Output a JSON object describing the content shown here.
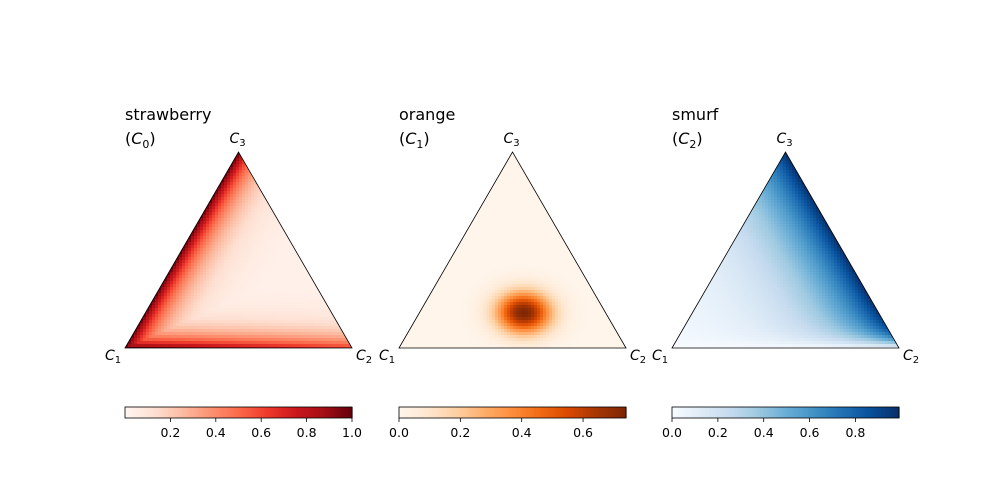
{
  "figure": {
    "background": "#ffffff"
  },
  "chart_data": [
    {
      "type": "heatmap",
      "subtype": "ternary-density",
      "title": "strawberry",
      "subtitle_symbol": "C",
      "subtitle_index": "0",
      "colormap": "Reds",
      "color_stops": [
        "#fff5f0",
        "#fee0d2",
        "#fcbba1",
        "#fc9272",
        "#fb6a4a",
        "#ef3b2c",
        "#cb181d",
        "#a50f15",
        "#67000d"
      ],
      "vertices": [
        {
          "symbol": "C",
          "index": "1"
        },
        {
          "symbol": "C",
          "index": "2"
        },
        {
          "symbol": "C",
          "index": "3"
        }
      ],
      "colorbar": {
        "range": [
          0.0,
          1.0
        ],
        "ticks": [
          0.2,
          0.4,
          0.6,
          0.8,
          1.0
        ],
        "tick_labels": [
          "0.2",
          "0.4",
          "0.6",
          "0.8",
          "1.0"
        ]
      },
      "pattern": "high along C1–C3 and C1–C2 edges, low in interior",
      "peak_barycentric": [
        1.0,
        0.0,
        0.0
      ]
    },
    {
      "type": "heatmap",
      "subtype": "ternary-density",
      "title": "orange",
      "subtitle_symbol": "C",
      "subtitle_index": "1",
      "colormap": "Oranges",
      "color_stops": [
        "#fff5eb",
        "#fee6ce",
        "#fdd0a2",
        "#fdae6b",
        "#fd8d3c",
        "#f16913",
        "#d94801",
        "#a63603",
        "#7f2704"
      ],
      "vertices": [
        {
          "symbol": "C",
          "index": "1"
        },
        {
          "symbol": "C",
          "index": "2"
        },
        {
          "symbol": "C",
          "index": "3"
        }
      ],
      "colorbar": {
        "range": [
          0.0,
          0.74
        ],
        "ticks": [
          0.0,
          0.2,
          0.4,
          0.6
        ],
        "tick_labels": [
          "0.0",
          "0.2",
          "0.4",
          "0.6"
        ]
      },
      "pattern": "single blob centred in lower interior",
      "peak_barycentric": [
        0.35,
        0.45,
        0.2
      ]
    },
    {
      "type": "heatmap",
      "subtype": "ternary-density",
      "title": "smurf",
      "subtitle_symbol": "C",
      "subtitle_index": "2",
      "colormap": "Blues",
      "color_stops": [
        "#f7fbff",
        "#deebf7",
        "#c6dbef",
        "#9ecae1",
        "#6baed6",
        "#4292c6",
        "#2171b5",
        "#08519c",
        "#08306b"
      ],
      "vertices": [
        {
          "symbol": "C",
          "index": "1"
        },
        {
          "symbol": "C",
          "index": "2"
        },
        {
          "symbol": "C",
          "index": "3"
        }
      ],
      "colorbar": {
        "range": [
          0.0,
          0.99
        ],
        "ticks": [
          0.0,
          0.2,
          0.4,
          0.6,
          0.8
        ],
        "tick_labels": [
          "0.0",
          "0.2",
          "0.4",
          "0.6",
          "0.8"
        ]
      },
      "pattern": "high along C2–C3 edge, low near C1",
      "peak_barycentric": [
        0.0,
        0.5,
        0.5
      ]
    }
  ]
}
